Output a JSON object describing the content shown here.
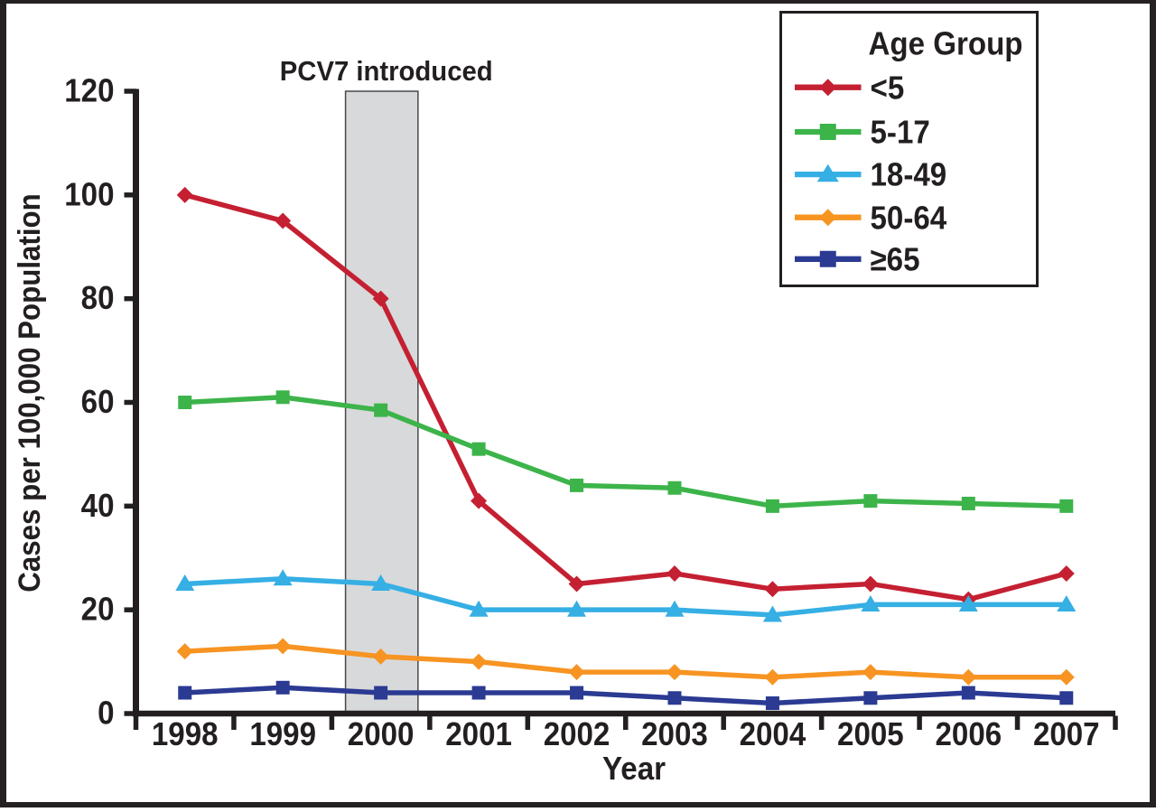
{
  "chart_data": {
    "type": "line",
    "title": "",
    "x": [
      1998,
      1999,
      2000,
      2001,
      2002,
      2003,
      2004,
      2005,
      2006,
      2007
    ],
    "xlabel": "Year",
    "ylabel": "Cases per 100,000 Population",
    "ylim": [
      0,
      120
    ],
    "yticks": [
      0,
      20,
      40,
      60,
      80,
      100,
      120
    ],
    "grid": false,
    "legend": {
      "title": "Age Group",
      "position": "top-right"
    },
    "annotation": {
      "text": "PCV7 introduced",
      "band_year_start": 1999.64,
      "band_year_end": 2000.38,
      "band_fill": "#d8d9da",
      "band_border": "#48484a"
    },
    "series": [
      {
        "name": "<5",
        "color": "#c42032",
        "marker": "diamond",
        "values": [
          100,
          95,
          80,
          41,
          25,
          27,
          24,
          25,
          22,
          27
        ]
      },
      {
        "name": "5-17",
        "color": "#3cb44a",
        "marker": "square",
        "values": [
          60,
          61,
          58.5,
          51,
          44,
          43.5,
          40,
          41,
          40.5,
          40
        ]
      },
      {
        "name": "18-49",
        "color": "#35afe4",
        "marker": "triangle",
        "values": [
          25,
          26,
          25,
          20,
          20,
          20,
          19,
          21,
          21,
          21
        ]
      },
      {
        "name": "50-64",
        "color": "#f79422",
        "marker": "diamond",
        "values": [
          12,
          13,
          11,
          10,
          8,
          8,
          7,
          8,
          7,
          7
        ]
      },
      {
        "name": "≥65",
        "color": "#2b3a92",
        "marker": "square",
        "values": [
          4,
          5,
          4,
          4,
          4,
          3,
          2,
          3,
          4,
          3
        ]
      }
    ],
    "axis_color": "#231f20",
    "text_color": "#231f20",
    "frame_color": "#252021",
    "plot_background": "#ffffff"
  }
}
